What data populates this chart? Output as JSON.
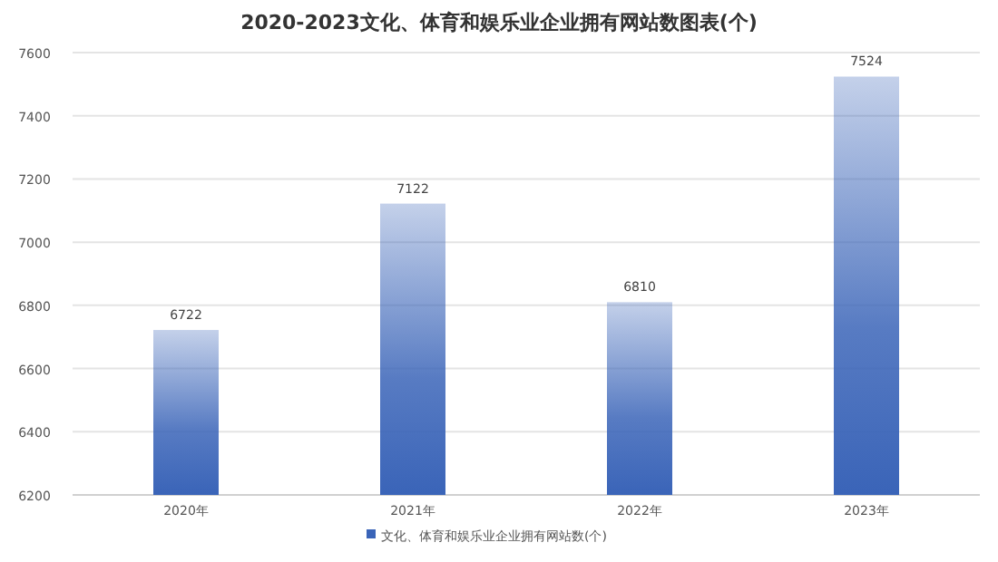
{
  "chart_data": {
    "type": "bar",
    "title": "2020-2023文化、体育和娱乐业企业拥有网站数图表(个)",
    "categories": [
      "2020年",
      "2021年",
      "2022年",
      "2023年"
    ],
    "series": [
      {
        "name": "文化、体育和娱乐业企业拥有网站数(个)",
        "color": "#3a64b8",
        "values": [
          6722,
          7122,
          6810,
          7524
        ]
      }
    ],
    "ylim": [
      6200,
      7600
    ],
    "yticks": [
      6200,
      6400,
      6600,
      6800,
      7000,
      7200,
      7400,
      7600
    ],
    "grid": "y",
    "legend": "bottom",
    "data_labels": true
  }
}
